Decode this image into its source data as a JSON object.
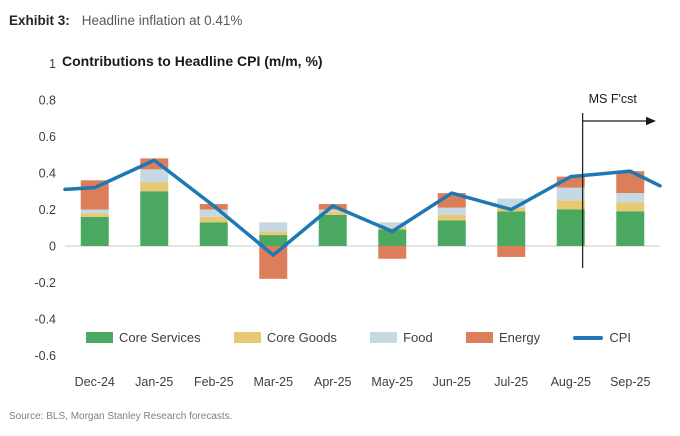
{
  "header": {
    "exhibit_label": "Exhibit 3:",
    "exhibit_title": "Headline inflation at 0.41%"
  },
  "chart_data": {
    "type": "bar",
    "subtype": "stacked-bar-with-line",
    "title": "Contributions to Headline CPI (m/m, %)",
    "categories": [
      "Dec-24",
      "Jan-25",
      "Feb-25",
      "Mar-25",
      "Apr-25",
      "May-25",
      "Jun-25",
      "Jul-25",
      "Aug-25",
      "Sep-25"
    ],
    "series": [
      {
        "name": "Core Services",
        "color": "#4aa860",
        "values": [
          0.16,
          0.3,
          0.13,
          0.06,
          0.17,
          0.09,
          0.14,
          0.19,
          0.2,
          0.19
        ]
      },
      {
        "name": "Core Goods",
        "color": "#e7c873",
        "values": [
          0.02,
          0.05,
          0.03,
          0.02,
          0.02,
          0.01,
          0.03,
          0.02,
          0.05,
          0.05
        ]
      },
      {
        "name": "Food",
        "color": "#c6d9e3",
        "values": [
          0.02,
          0.07,
          0.04,
          0.05,
          0.01,
          0.03,
          0.04,
          0.05,
          0.07,
          0.05
        ]
      },
      {
        "name": "Energy",
        "color": "#dd7e5a",
        "values": [
          0.16,
          0.06,
          0.03,
          -0.18,
          0.03,
          -0.07,
          0.08,
          -0.06,
          0.06,
          0.12
        ]
      }
    ],
    "line": {
      "name": "CPI",
      "color": "#1f78b4",
      "values": [
        0.32,
        0.47,
        0.22,
        -0.05,
        0.22,
        0.08,
        0.29,
        0.2,
        0.38,
        0.41
      ],
      "edge_left": 0.31,
      "edge_right": 0.33
    },
    "ylim": [
      -0.6,
      1.0
    ],
    "ytick_step": 0.2,
    "grid": false,
    "legend_position": "bottom",
    "annotation": {
      "label": "MS F'cst",
      "type": "forecast-divider",
      "x_fraction": 0.87
    }
  },
  "source": "Source: BLS, Morgan Stanley Research forecasts."
}
